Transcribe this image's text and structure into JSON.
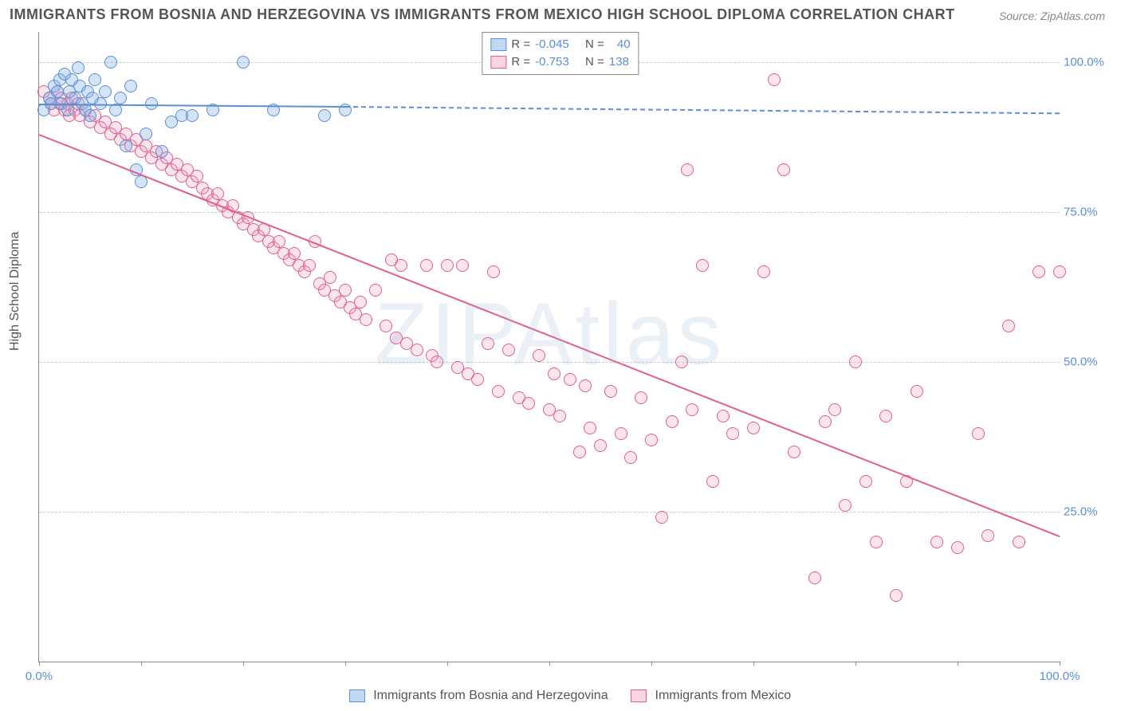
{
  "title": "IMMIGRANTS FROM BOSNIA AND HERZEGOVINA VS IMMIGRANTS FROM MEXICO HIGH SCHOOL DIPLOMA CORRELATION CHART",
  "source": "Source: ZipAtlas.com",
  "ylabel": "High School Diploma",
  "watermark": "ZIPAtlas",
  "chart": {
    "type": "scatter",
    "xlim": [
      0,
      100
    ],
    "ylim": [
      0,
      105
    ],
    "x_ticks": [
      0,
      10,
      20,
      30,
      40,
      50,
      60,
      70,
      80,
      90,
      100
    ],
    "x_tick_labels": {
      "0": "0.0%",
      "100": "100.0%"
    },
    "y_ticks": [
      25,
      50,
      75,
      100
    ],
    "y_tick_labels": {
      "25": "25.0%",
      "50": "50.0%",
      "75": "75.0%",
      "100": "100.0%"
    },
    "grid_color": "#cccccc",
    "background_color": "#ffffff",
    "marker_size": 16
  },
  "series": {
    "a": {
      "label": "Immigrants from Bosnia and Herzegovina",
      "color_fill": "rgba(133,178,226,0.35)",
      "color_stroke": "#5b8fd6",
      "R": "-0.045",
      "N": "40",
      "trend": {
        "x1": 0,
        "y1": 93,
        "x2_solid": 30,
        "y2_solid": 92.6,
        "x2": 100,
        "y2": 91.5
      },
      "points": [
        [
          0.5,
          92
        ],
        [
          1,
          94
        ],
        [
          1.2,
          93
        ],
        [
          1.5,
          96
        ],
        [
          1.8,
          95
        ],
        [
          2,
          97
        ],
        [
          2.2,
          93
        ],
        [
          2.5,
          98
        ],
        [
          2.8,
          92
        ],
        [
          3,
          95
        ],
        [
          3.2,
          97
        ],
        [
          3.5,
          94
        ],
        [
          3.8,
          99
        ],
        [
          4,
          96
        ],
        [
          4.2,
          93
        ],
        [
          4.5,
          92
        ],
        [
          4.8,
          95
        ],
        [
          5,
          91
        ],
        [
          5.2,
          94
        ],
        [
          5.5,
          97
        ],
        [
          6,
          93
        ],
        [
          6.5,
          95
        ],
        [
          7,
          100
        ],
        [
          7.5,
          92
        ],
        [
          8,
          94
        ],
        [
          8.5,
          86
        ],
        [
          9,
          96
        ],
        [
          9.5,
          82
        ],
        [
          10,
          80
        ],
        [
          10.5,
          88
        ],
        [
          11,
          93
        ],
        [
          12,
          85
        ],
        [
          13,
          90
        ],
        [
          14,
          91
        ],
        [
          15,
          91
        ],
        [
          17,
          92
        ],
        [
          20,
          100
        ],
        [
          23,
          92
        ],
        [
          28,
          91
        ],
        [
          30,
          92
        ]
      ]
    },
    "b": {
      "label": "Immigrants from Mexico",
      "color_fill": "rgba(239,151,182,0.25)",
      "color_stroke": "#e15e8e",
      "R": "-0.753",
      "N": "138",
      "trend": {
        "x1": 0,
        "y1": 88,
        "x2_solid": 100,
        "y2_solid": 21,
        "x2": 100,
        "y2": 21
      },
      "points": [
        [
          0.5,
          95
        ],
        [
          1,
          94
        ],
        [
          1.2,
          93
        ],
        [
          1.5,
          92
        ],
        [
          1.8,
          95
        ],
        [
          2,
          93
        ],
        [
          2.2,
          94
        ],
        [
          2.5,
          92
        ],
        [
          2.8,
          93
        ],
        [
          3,
          91
        ],
        [
          3.2,
          94
        ],
        [
          3.5,
          92
        ],
        [
          3.8,
          93
        ],
        [
          4,
          91
        ],
        [
          4.5,
          92
        ],
        [
          5,
          90
        ],
        [
          5.5,
          91
        ],
        [
          6,
          89
        ],
        [
          6.5,
          90
        ],
        [
          7,
          88
        ],
        [
          7.5,
          89
        ],
        [
          8,
          87
        ],
        [
          8.5,
          88
        ],
        [
          9,
          86
        ],
        [
          9.5,
          87
        ],
        [
          10,
          85
        ],
        [
          10.5,
          86
        ],
        [
          11,
          84
        ],
        [
          11.5,
          85
        ],
        [
          12,
          83
        ],
        [
          12.5,
          84
        ],
        [
          13,
          82
        ],
        [
          13.5,
          83
        ],
        [
          14,
          81
        ],
        [
          14.5,
          82
        ],
        [
          15,
          80
        ],
        [
          15.5,
          81
        ],
        [
          16,
          79
        ],
        [
          16.5,
          78
        ],
        [
          17,
          77
        ],
        [
          17.5,
          78
        ],
        [
          18,
          76
        ],
        [
          18.5,
          75
        ],
        [
          19,
          76
        ],
        [
          19.5,
          74
        ],
        [
          20,
          73
        ],
        [
          20.5,
          74
        ],
        [
          21,
          72
        ],
        [
          21.5,
          71
        ],
        [
          22,
          72
        ],
        [
          22.5,
          70
        ],
        [
          23,
          69
        ],
        [
          23.5,
          70
        ],
        [
          24,
          68
        ],
        [
          24.5,
          67
        ],
        [
          25,
          68
        ],
        [
          25.5,
          66
        ],
        [
          26,
          65
        ],
        [
          26.5,
          66
        ],
        [
          27,
          70
        ],
        [
          27.5,
          63
        ],
        [
          28,
          62
        ],
        [
          28.5,
          64
        ],
        [
          29,
          61
        ],
        [
          29.5,
          60
        ],
        [
          30,
          62
        ],
        [
          30.5,
          59
        ],
        [
          31,
          58
        ],
        [
          31.5,
          60
        ],
        [
          32,
          57
        ],
        [
          33,
          62
        ],
        [
          34,
          56
        ],
        [
          34.5,
          67
        ],
        [
          35,
          54
        ],
        [
          35.5,
          66
        ],
        [
          36,
          53
        ],
        [
          37,
          52
        ],
        [
          38,
          66
        ],
        [
          38.5,
          51
        ],
        [
          39,
          50
        ],
        [
          40,
          66
        ],
        [
          41,
          49
        ],
        [
          41.5,
          66
        ],
        [
          42,
          48
        ],
        [
          43,
          47
        ],
        [
          44,
          53
        ],
        [
          44.5,
          65
        ],
        [
          45,
          45
        ],
        [
          46,
          52
        ],
        [
          47,
          44
        ],
        [
          48,
          43
        ],
        [
          49,
          51
        ],
        [
          50,
          42
        ],
        [
          50.5,
          48
        ],
        [
          51,
          41
        ],
        [
          52,
          47
        ],
        [
          53,
          35
        ],
        [
          53.5,
          46
        ],
        [
          54,
          39
        ],
        [
          55,
          36
        ],
        [
          56,
          45
        ],
        [
          57,
          38
        ],
        [
          58,
          34
        ],
        [
          59,
          44
        ],
        [
          60,
          37
        ],
        [
          61,
          24
        ],
        [
          62,
          40
        ],
        [
          63,
          50
        ],
        [
          63.5,
          82
        ],
        [
          64,
          42
        ],
        [
          65,
          66
        ],
        [
          66,
          30
        ],
        [
          67,
          41
        ],
        [
          68,
          38
        ],
        [
          70,
          39
        ],
        [
          71,
          65
        ],
        [
          72,
          97
        ],
        [
          73,
          82
        ],
        [
          74,
          35
        ],
        [
          76,
          14
        ],
        [
          77,
          40
        ],
        [
          78,
          42
        ],
        [
          79,
          26
        ],
        [
          80,
          50
        ],
        [
          81,
          30
        ],
        [
          82,
          20
        ],
        [
          83,
          41
        ],
        [
          84,
          11
        ],
        [
          85,
          30
        ],
        [
          86,
          45
        ],
        [
          88,
          20
        ],
        [
          90,
          19
        ],
        [
          92,
          38
        ],
        [
          93,
          21
        ],
        [
          95,
          56
        ],
        [
          96,
          20
        ],
        [
          98,
          65
        ],
        [
          100,
          65
        ]
      ]
    }
  },
  "legend_top": {
    "r_label": "R =",
    "n_label": "N ="
  }
}
